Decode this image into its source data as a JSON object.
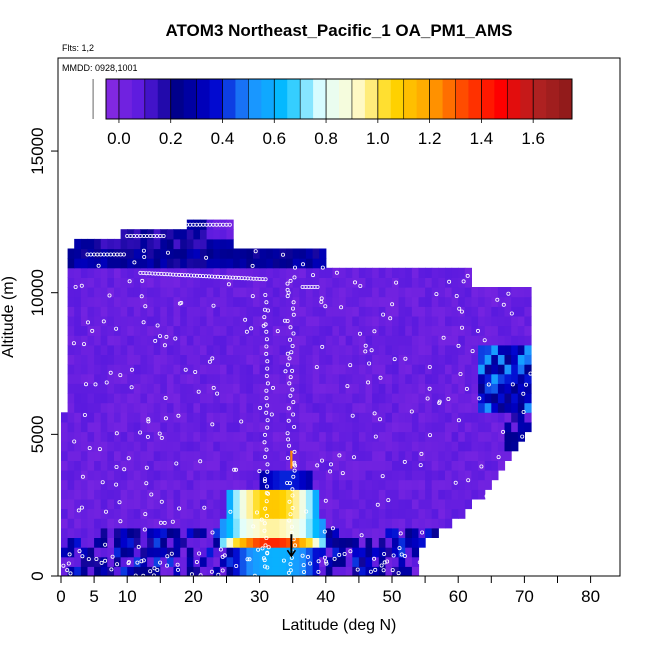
{
  "chart_data": {
    "type": "heatmap",
    "title": "ATOM3 Northeast_Pacific_1 OA_PM1_AMS",
    "flights_label": "Flts: 1,2",
    "date_label": "MMDD: 0928,1001",
    "xlabel": "Latitude (deg N)",
    "ylabel": "Altitude (m)",
    "xlim": [
      0,
      85
    ],
    "ylim": [
      0,
      18000
    ],
    "x_ticks": [
      0,
      5,
      10,
      20,
      30,
      40,
      50,
      60,
      70,
      80
    ],
    "y_ticks": [
      0,
      5000,
      10000,
      15000
    ],
    "colorbar": {
      "min": -0.05,
      "max": 1.75,
      "ticks": [
        0.0,
        0.2,
        0.4,
        0.6,
        0.8,
        1.0,
        1.2,
        1.4,
        1.6
      ],
      "tick_labels": [
        "0.0",
        "0.2",
        "0.4",
        "0.6",
        "0.8",
        "1.0",
        "1.2",
        "1.4",
        "1.6"
      ],
      "stops": [
        "#8a2be2",
        "#5a1adf",
        "#00008b",
        "#0000cd",
        "#1e90ff",
        "#00bfff",
        "#e0ffff",
        "#fffacd",
        "#ffd700",
        "#ffa500",
        "#ff4500",
        "#ff0000",
        "#b22222",
        "#8b1a1a"
      ]
    },
    "profile_lat": 34.8,
    "profile_arrows": [
      {
        "latitude": 34.8,
        "altitude": 4000,
        "color": "#ff8c00"
      },
      {
        "latitude": 34.8,
        "altitude": 700,
        "color": "#000000"
      }
    ],
    "enhanced_layers": [
      {
        "lat_range": [
          26,
          39
        ],
        "alt_range": [
          0,
          700
        ],
        "peak": 0.6
      },
      {
        "lat_range": [
          24,
          40
        ],
        "alt_range": [
          700,
          1300
        ],
        "peak": 1.4
      },
      {
        "lat_range": [
          24,
          40
        ],
        "alt_range": [
          1300,
          2000
        ],
        "peak": 0.95
      },
      {
        "lat_range": [
          25,
          39
        ],
        "alt_range": [
          2000,
          3000
        ],
        "peak": 1.1
      },
      {
        "lat_range": [
          30,
          38
        ],
        "alt_range": [
          3000,
          3600
        ],
        "peak": 0.4
      }
    ],
    "coverage": {
      "latitude_range": [
        0,
        72
      ],
      "altitude_range": [
        0,
        12800
      ],
      "background_value": 0.05
    }
  }
}
